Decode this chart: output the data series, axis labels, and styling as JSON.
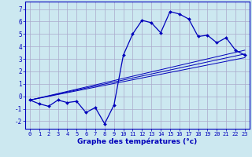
{
  "xlabel": "Graphe des températures (°c)",
  "background_color": "#cce8f0",
  "grid_color": "#aaaacc",
  "line_color": "#0000bb",
  "xlim": [
    -0.5,
    23.5
  ],
  "ylim": [
    -2.6,
    7.6
  ],
  "xticks": [
    0,
    1,
    2,
    3,
    4,
    5,
    6,
    7,
    8,
    9,
    10,
    11,
    12,
    13,
    14,
    15,
    16,
    17,
    18,
    19,
    20,
    21,
    22,
    23
  ],
  "yticks": [
    -2,
    -1,
    0,
    1,
    2,
    3,
    4,
    5,
    6,
    7
  ],
  "main_x": [
    0,
    1,
    2,
    3,
    4,
    5,
    6,
    7,
    8,
    9,
    10,
    11,
    12,
    13,
    14,
    15,
    16,
    17,
    18,
    19,
    20,
    21,
    22,
    23
  ],
  "main_y": [
    -0.3,
    -0.6,
    -0.8,
    -0.3,
    -0.5,
    -0.4,
    -1.3,
    -0.9,
    -2.2,
    -0.7,
    3.3,
    5.0,
    6.1,
    5.9,
    5.1,
    6.8,
    6.6,
    6.2,
    4.8,
    4.9,
    4.3,
    4.7,
    3.7,
    3.3
  ],
  "line1_x": [
    0,
    23
  ],
  "line1_y": [
    -0.3,
    3.1
  ],
  "line2_x": [
    0,
    23
  ],
  "line2_y": [
    -0.3,
    3.4
  ],
  "line3_x": [
    0,
    23
  ],
  "line3_y": [
    -0.3,
    3.7
  ]
}
